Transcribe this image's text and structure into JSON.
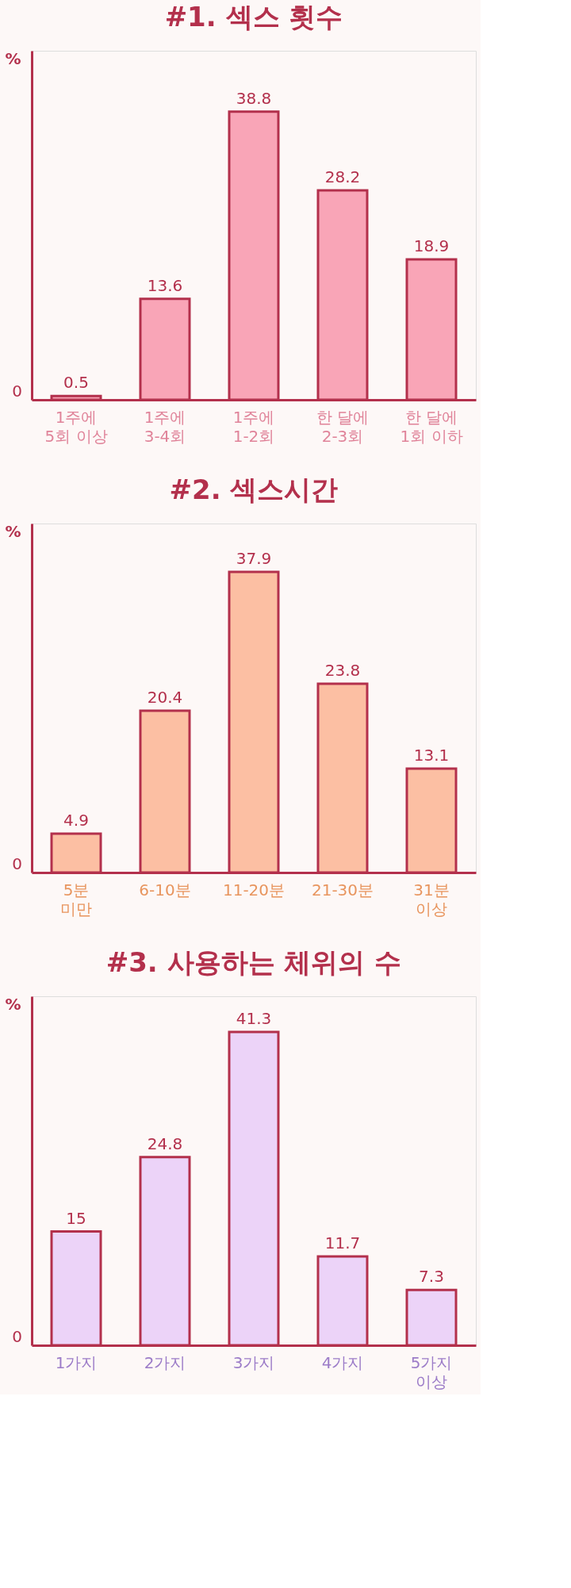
{
  "chart_data": [
    {
      "type": "bar",
      "title": "#1. 섹스 횟수",
      "ylabel": "%",
      "categories": [
        "1주에\n5회 이상",
        "1주에\n3-4회",
        "1주에\n1-2회",
        "한 달에\n2-3회",
        "한 달에\n1회 이하"
      ],
      "values": [
        0.5,
        13.6,
        38.8,
        28.2,
        18.9
      ],
      "color": "#f9a5b7",
      "ylim": [
        0,
        47
      ],
      "annotations": [
        "0"
      ],
      "data_labels": true,
      "grid": false
    },
    {
      "type": "bar",
      "title": "#2. 섹스시간",
      "ylabel": "%",
      "categories": [
        "5분\n미만",
        "6-10분",
        "11-20분",
        "21-30분",
        "31분\n이상"
      ],
      "values": [
        4.9,
        20.4,
        37.9,
        23.8,
        13.1
      ],
      "color": "#fcbfa3",
      "ylim": [
        0,
        44
      ],
      "annotations": [
        "0"
      ],
      "data_labels": true,
      "grid": false
    },
    {
      "type": "bar",
      "title": "#3. 사용하는 체위의 수",
      "ylabel": "%",
      "categories": [
        "1가지",
        "2가지",
        "3가지",
        "4가지",
        "5가지\n이상"
      ],
      "values": [
        15,
        24.8,
        41.3,
        11.7,
        7.3
      ],
      "color": "#ecd3f8",
      "ylim": [
        0,
        46
      ],
      "annotations": [
        "0"
      ],
      "data_labels": true,
      "grid": false
    }
  ]
}
